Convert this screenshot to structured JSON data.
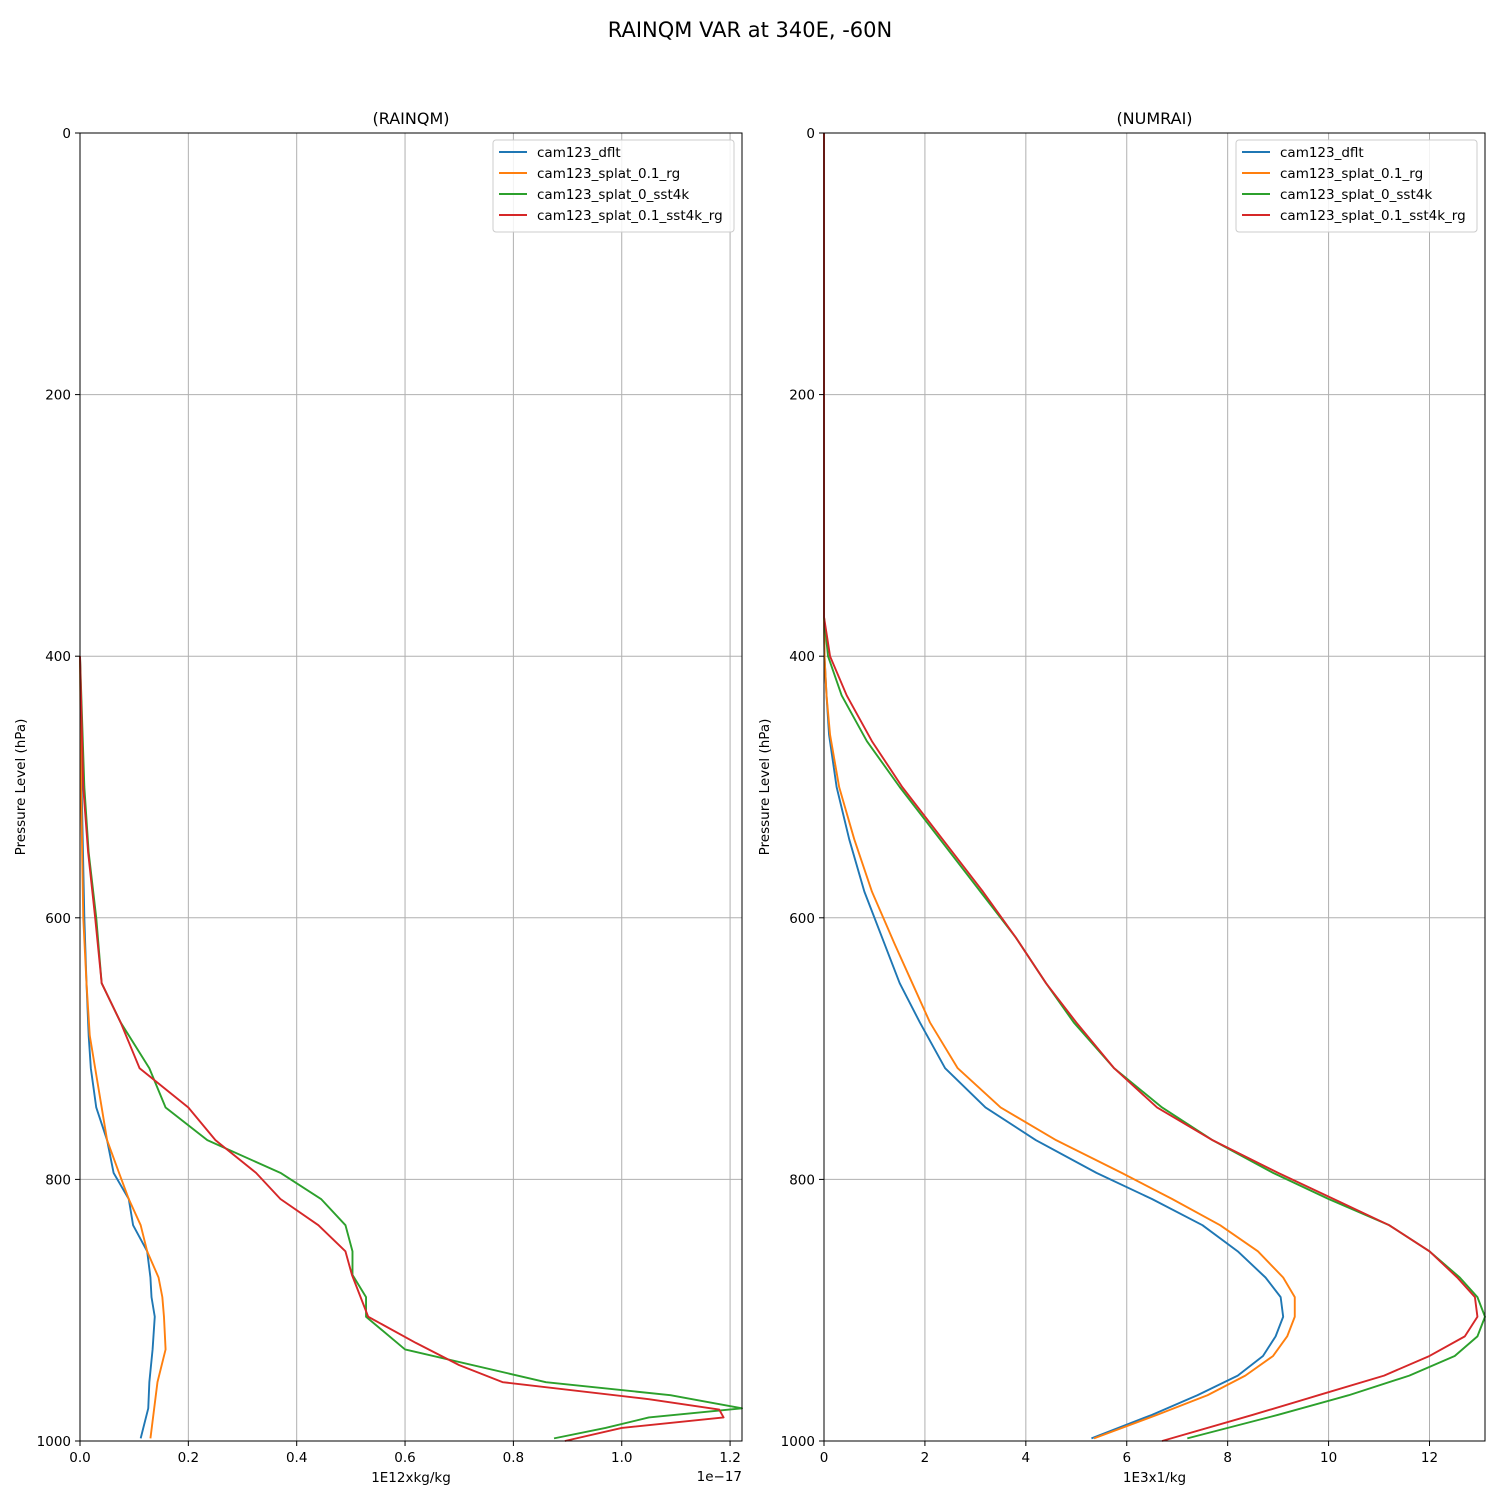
{
  "figure": {
    "suptitle": "RAINQM VAR at 340E, -60N"
  },
  "chart_data": [
    {
      "type": "line",
      "title": "(RAINQM)",
      "xlabel": "1E12xkg/kg",
      "ylabel": "Pressure Level (hPa)",
      "x_offset_text": "1e−17",
      "xlim": [
        0,
        1.222
      ],
      "ylim": [
        1000,
        0
      ],
      "y_inverted": true,
      "grid": true,
      "legend_position": "upper right",
      "x_ticks": [
        "0.0",
        "0.2",
        "0.4",
        "0.6",
        "0.8",
        "1.0",
        "1.2"
      ],
      "x_tick_values": [
        0,
        0.2,
        0.4,
        0.6,
        0.8,
        1.0,
        1.2
      ],
      "y_ticks": [
        "0",
        "200",
        "400",
        "600",
        "800",
        "1000"
      ],
      "y_tick_values": [
        0,
        200,
        400,
        600,
        800,
        1000
      ],
      "series": [
        {
          "name": "cam123_dflt",
          "color": "#1f77b4",
          "pressure": [
            400,
            500,
            600,
            650,
            690,
            715,
            745,
            770,
            795,
            815,
            835,
            855,
            875,
            890,
            905,
            930,
            955,
            975,
            998
          ],
          "values": [
            0,
            0.003,
            0.008,
            0.012,
            0.016,
            0.02,
            0.03,
            0.05,
            0.062,
            0.09,
            0.098,
            0.124,
            0.13,
            0.132,
            0.138,
            0.134,
            0.128,
            0.126,
            0.112
          ]
        },
        {
          "name": "cam123_splat_0.1_rg",
          "color": "#ff7f0e",
          "pressure": [
            400,
            500,
            600,
            650,
            690,
            715,
            745,
            770,
            795,
            815,
            835,
            855,
            875,
            890,
            905,
            930,
            955,
            998
          ],
          "values": [
            0,
            0.002,
            0.006,
            0.012,
            0.018,
            0.028,
            0.04,
            0.05,
            0.072,
            0.09,
            0.112,
            0.124,
            0.145,
            0.152,
            0.155,
            0.158,
            0.143,
            0.13
          ]
        },
        {
          "name": "cam123_splat_0_sst4k",
          "color": "#2ca02c",
          "pressure": [
            400,
            500,
            550,
            600,
            650,
            680,
            715,
            745,
            770,
            795,
            815,
            835,
            855,
            873,
            890,
            905,
            930,
            955,
            965,
            975,
            982,
            990,
            998
          ],
          "values": [
            0,
            0.008,
            0.016,
            0.03,
            0.04,
            0.075,
            0.128,
            0.158,
            0.235,
            0.37,
            0.445,
            0.49,
            0.503,
            0.503,
            0.528,
            0.528,
            0.6,
            0.86,
            1.09,
            1.222,
            1.05,
            0.97,
            0.875
          ]
        },
        {
          "name": "cam123_splat_0.1_sst4k_rg",
          "color": "#d62728",
          "pressure": [
            400,
            500,
            550,
            600,
            650,
            680,
            715,
            745,
            770,
            795,
            815,
            835,
            855,
            873,
            905,
            925,
            942,
            955,
            968,
            976,
            982,
            990,
            1000
          ],
          "values": [
            0,
            0.006,
            0.015,
            0.028,
            0.04,
            0.075,
            0.11,
            0.2,
            0.25,
            0.325,
            0.37,
            0.44,
            0.49,
            0.502,
            0.532,
            0.62,
            0.7,
            0.78,
            1.05,
            1.18,
            1.188,
            1.0,
            0.895
          ]
        }
      ]
    },
    {
      "type": "line",
      "title": "(NUMRAI)",
      "xlabel": "1E3x1/kg",
      "ylabel": "Pressure Level (hPa)",
      "xlim": [
        0,
        13.1
      ],
      "ylim": [
        1000,
        0
      ],
      "y_inverted": true,
      "grid": true,
      "legend_position": "upper right",
      "x_ticks": [
        "0",
        "2",
        "4",
        "6",
        "8",
        "10",
        "12"
      ],
      "x_tick_values": [
        0,
        2,
        4,
        6,
        8,
        10,
        12
      ],
      "y_ticks": [
        "0",
        "200",
        "400",
        "600",
        "800",
        "1000"
      ],
      "y_tick_values": [
        0,
        200,
        400,
        600,
        800,
        1000
      ],
      "series": [
        {
          "name": "cam123_dflt",
          "color": "#1f77b4",
          "pressure": [
            0,
            370,
            400,
            430,
            460,
            500,
            540,
            580,
            620,
            650,
            680,
            715,
            745,
            770,
            795,
            815,
            835,
            855,
            875,
            890,
            905,
            920,
            935,
            950,
            965,
            980,
            998
          ],
          "values": [
            0,
            0,
            0.01,
            0.05,
            0.1,
            0.25,
            0.5,
            0.8,
            1.2,
            1.5,
            1.9,
            2.4,
            3.2,
            4.2,
            5.4,
            6.5,
            7.5,
            8.2,
            8.75,
            9.05,
            9.1,
            8.95,
            8.7,
            8.2,
            7.4,
            6.5,
            5.3
          ]
        },
        {
          "name": "cam123_splat_0.1_rg",
          "color": "#ff7f0e",
          "pressure": [
            0,
            370,
            400,
            430,
            460,
            500,
            540,
            580,
            620,
            650,
            680,
            715,
            745,
            770,
            795,
            815,
            835,
            855,
            875,
            890,
            905,
            920,
            935,
            950,
            965,
            980,
            998
          ],
          "values": [
            0,
            0,
            0.01,
            0.05,
            0.12,
            0.3,
            0.6,
            0.95,
            1.4,
            1.75,
            2.1,
            2.65,
            3.5,
            4.6,
            5.9,
            6.9,
            7.85,
            8.6,
            9.1,
            9.33,
            9.33,
            9.18,
            8.9,
            8.35,
            7.6,
            6.6,
            5.35
          ]
        },
        {
          "name": "cam123_splat_0_sst4k",
          "color": "#2ca02c",
          "pressure": [
            0,
            370,
            400,
            430,
            465,
            500,
            540,
            580,
            615,
            650,
            680,
            715,
            745,
            770,
            795,
            815,
            835,
            855,
            875,
            890,
            905,
            920,
            935,
            950,
            965,
            980,
            998
          ],
          "values": [
            0,
            0,
            0.08,
            0.35,
            0.85,
            1.5,
            2.3,
            3.1,
            3.8,
            4.4,
            4.95,
            5.75,
            6.7,
            7.7,
            8.9,
            10.0,
            11.2,
            12.0,
            12.6,
            12.95,
            13.1,
            12.95,
            12.5,
            11.6,
            10.4,
            9.0,
            7.2
          ]
        },
        {
          "name": "cam123_splat_0.1_sst4k_rg",
          "color": "#d62728",
          "pressure": [
            0,
            370,
            400,
            430,
            465,
            500,
            540,
            580,
            615,
            650,
            680,
            715,
            745,
            770,
            795,
            815,
            835,
            855,
            875,
            890,
            905,
            920,
            935,
            950,
            965,
            980,
            1000
          ],
          "values": [
            0,
            0,
            0.12,
            0.45,
            0.95,
            1.55,
            2.35,
            3.15,
            3.8,
            4.4,
            5.0,
            5.75,
            6.6,
            7.7,
            9.0,
            10.1,
            11.2,
            12.0,
            12.55,
            12.9,
            12.95,
            12.7,
            12.0,
            11.1,
            9.8,
            8.5,
            6.7
          ]
        }
      ]
    }
  ]
}
